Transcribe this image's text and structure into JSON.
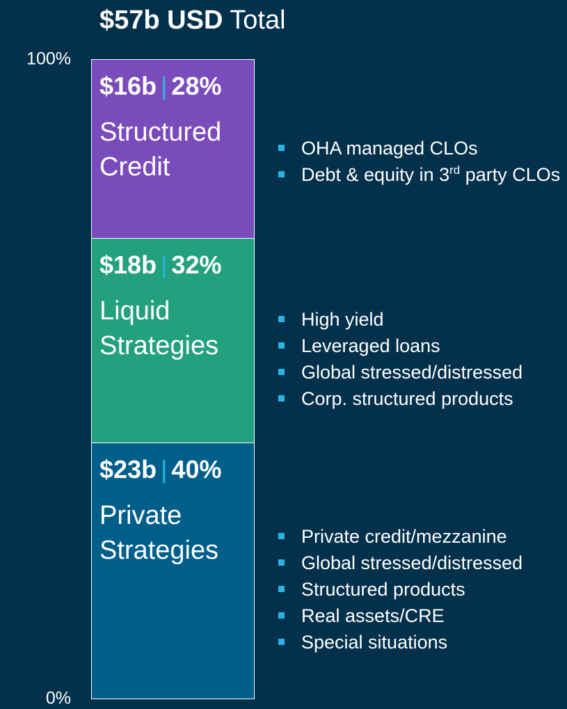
{
  "chart_data": {
    "type": "stacked_bar",
    "title": "$57b USD",
    "title_suffix": "Total",
    "ylim": [
      0,
      100
    ],
    "yticks": [
      {
        "value": 0,
        "label": "0%"
      },
      {
        "value": 100,
        "label": "100%"
      }
    ],
    "separator": "|",
    "separator_color": "#2ab4e6",
    "bullet_color": "#2ab4e6",
    "series": [
      {
        "name": "Private Strategies",
        "color": "#005e8a",
        "values": [
          40
        ],
        "value_labels": [
          "40%"
        ],
        "amount_label": "$23b",
        "bullets": [
          {
            "text": "Private credit/mezzanine"
          },
          {
            "text": "Global stressed/distressed"
          },
          {
            "text": "Structured products"
          },
          {
            "text": "Real assets/CRE"
          },
          {
            "text": "Special situations"
          }
        ]
      },
      {
        "name": "Liquid Strategies",
        "color": "#23a07e",
        "values": [
          32
        ],
        "value_labels": [
          "32%"
        ],
        "amount_label": "$18b",
        "bullets": [
          {
            "text": "High yield"
          },
          {
            "text": "Leveraged loans"
          },
          {
            "text": "Global stressed/distressed"
          },
          {
            "text": "Corp. structured products"
          }
        ]
      },
      {
        "name": "Structured Credit",
        "color": "#7a4bba",
        "values": [
          28
        ],
        "value_labels": [
          "28%"
        ],
        "amount_label": "$16b",
        "bullets": [
          {
            "text": "OHA managed CLOs"
          },
          {
            "text": "Debt & equity in 3",
            "sup": "rd",
            "after": " party CLOs"
          }
        ]
      }
    ]
  }
}
